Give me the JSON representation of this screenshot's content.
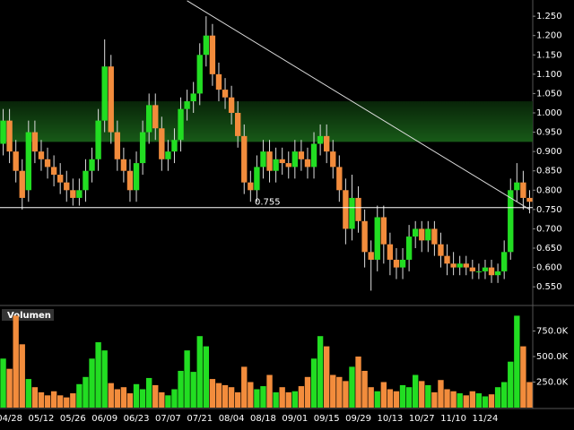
{
  "chart_data": {
    "type": "candlestick",
    "categories": [
      null,
      "04/28",
      null,
      null,
      null,
      null,
      "05/12",
      null,
      null,
      null,
      null,
      "05/26",
      null,
      null,
      null,
      null,
      "06/09",
      null,
      null,
      null,
      null,
      "06/23",
      null,
      null,
      null,
      null,
      "07/07",
      null,
      null,
      null,
      null,
      "07/21",
      null,
      null,
      null,
      null,
      "08/04",
      null,
      null,
      null,
      null,
      "08/18",
      null,
      null,
      null,
      null,
      "09/01",
      null,
      null,
      null,
      null,
      "09/15",
      null,
      null,
      null,
      null,
      "09/29",
      null,
      null,
      null,
      null,
      "10/13",
      null,
      null,
      null,
      null,
      "10/27",
      null,
      null,
      null,
      null,
      "11/10",
      null,
      null,
      null,
      null,
      "11/24",
      null,
      null,
      null,
      null,
      null,
      null,
      null
    ],
    "open": [
      0.92,
      0.98,
      0.9,
      0.85,
      0.8,
      0.95,
      0.9,
      0.88,
      0.86,
      0.84,
      0.82,
      0.8,
      0.78,
      0.8,
      0.85,
      0.88,
      0.98,
      1.12,
      0.95,
      0.88,
      0.85,
      0.8,
      0.87,
      0.95,
      1.02,
      0.96,
      0.88,
      0.9,
      0.93,
      1.01,
      1.03,
      1.05,
      1.15,
      1.2,
      1.1,
      1.06,
      1.04,
      1.0,
      0.94,
      0.82,
      0.8,
      0.86,
      0.9,
      0.85,
      0.88,
      0.87,
      0.86,
      0.9,
      0.88,
      0.86,
      0.92,
      0.94,
      0.9,
      0.86,
      0.8,
      0.7,
      0.78,
      0.72,
      0.64,
      0.62,
      0.73,
      0.66,
      0.62,
      0.6,
      0.62,
      0.68,
      0.7,
      0.67,
      0.7,
      0.66,
      0.63,
      0.61,
      0.6,
      0.61,
      0.6,
      0.59,
      0.59,
      0.6,
      0.58,
      0.59,
      0.64,
      0.8,
      0.82,
      0.78
    ],
    "high": [
      1.01,
      1.01,
      0.93,
      0.88,
      0.98,
      0.98,
      0.93,
      0.91,
      0.89,
      0.87,
      0.85,
      0.83,
      0.83,
      0.88,
      0.91,
      1.01,
      1.19,
      1.15,
      0.98,
      0.91,
      0.88,
      0.9,
      0.98,
      1.05,
      1.05,
      0.99,
      0.93,
      0.96,
      1.04,
      1.06,
      1.08,
      1.18,
      1.25,
      1.23,
      1.13,
      1.09,
      1.07,
      1.03,
      0.97,
      0.85,
      0.89,
      0.93,
      0.93,
      0.91,
      0.91,
      0.9,
      0.93,
      0.93,
      0.91,
      0.95,
      0.97,
      0.97,
      0.93,
      0.89,
      0.83,
      0.84,
      0.81,
      0.75,
      0.67,
      0.76,
      0.76,
      0.69,
      0.65,
      0.65,
      0.71,
      0.72,
      0.72,
      0.72,
      0.72,
      0.69,
      0.66,
      0.64,
      0.63,
      0.63,
      0.62,
      0.61,
      0.62,
      0.62,
      0.61,
      0.67,
      0.83,
      0.87,
      0.85,
      0.8
    ],
    "low": [
      0.89,
      0.87,
      0.82,
      0.75,
      0.77,
      0.87,
      0.85,
      0.83,
      0.81,
      0.79,
      0.77,
      0.76,
      0.76,
      0.77,
      0.82,
      0.85,
      0.95,
      0.92,
      0.85,
      0.82,
      0.77,
      0.77,
      0.84,
      0.92,
      0.93,
      0.85,
      0.85,
      0.87,
      0.9,
      0.98,
      1.0,
      1.02,
      1.12,
      1.07,
      1.03,
      1.01,
      0.97,
      0.91,
      0.79,
      0.77,
      0.77,
      0.83,
      0.82,
      0.82,
      0.84,
      0.83,
      0.83,
      0.85,
      0.83,
      0.83,
      0.89,
      0.87,
      0.83,
      0.77,
      0.66,
      0.67,
      0.69,
      0.6,
      0.54,
      0.59,
      0.61,
      0.58,
      0.57,
      0.57,
      0.59,
      0.65,
      0.64,
      0.64,
      0.63,
      0.6,
      0.58,
      0.58,
      0.58,
      0.58,
      0.57,
      0.57,
      0.57,
      0.56,
      0.56,
      0.57,
      0.62,
      0.77,
      0.75,
      0.74
    ],
    "close": [
      0.98,
      0.9,
      0.85,
      0.78,
      0.95,
      0.9,
      0.88,
      0.86,
      0.84,
      0.82,
      0.8,
      0.78,
      0.8,
      0.85,
      0.88,
      0.98,
      1.12,
      0.95,
      0.88,
      0.85,
      0.8,
      0.87,
      0.95,
      1.02,
      0.96,
      0.88,
      0.9,
      0.93,
      1.01,
      1.03,
      1.05,
      1.15,
      1.2,
      1.1,
      1.06,
      1.04,
      1.0,
      0.94,
      0.82,
      0.8,
      0.86,
      0.9,
      0.85,
      0.88,
      0.87,
      0.86,
      0.9,
      0.88,
      0.86,
      0.92,
      0.94,
      0.9,
      0.86,
      0.8,
      0.7,
      0.78,
      0.72,
      0.64,
      0.62,
      0.73,
      0.66,
      0.62,
      0.6,
      0.62,
      0.68,
      0.7,
      0.67,
      0.7,
      0.66,
      0.63,
      0.61,
      0.6,
      0.61,
      0.6,
      0.59,
      0.59,
      0.6,
      0.58,
      0.59,
      0.64,
      0.8,
      0.82,
      0.78,
      0.77
    ],
    "volume": [
      480000,
      380000,
      900000,
      620000,
      280000,
      200000,
      150000,
      120000,
      160000,
      120000,
      100000,
      140000,
      230000,
      300000,
      480000,
      640000,
      560000,
      240000,
      180000,
      200000,
      140000,
      230000,
      180000,
      290000,
      220000,
      150000,
      120000,
      180000,
      360000,
      560000,
      350000,
      700000,
      600000,
      280000,
      240000,
      220000,
      200000,
      150000,
      400000,
      250000,
      180000,
      210000,
      320000,
      150000,
      200000,
      150000,
      160000,
      210000,
      300000,
      480000,
      700000,
      600000,
      320000,
      300000,
      260000,
      400000,
      500000,
      360000,
      200000,
      160000,
      250000,
      180000,
      160000,
      220000,
      200000,
      320000,
      260000,
      220000,
      150000,
      270000,
      180000,
      160000,
      140000,
      120000,
      160000,
      140000,
      110000,
      130000,
      200000,
      250000,
      450000,
      900000,
      600000,
      250000
    ],
    "up_color": "#22dd22",
    "down_color": "#f28c3c",
    "ylim": [
      0.504,
      1.292
    ],
    "yticks": [
      {
        "value": 1.25,
        "label": "1.250"
      },
      {
        "value": 1.2,
        "label": "1.200"
      },
      {
        "value": 1.15,
        "label": "1.150"
      },
      {
        "value": 1.1,
        "label": "1.100"
      },
      {
        "value": 1.05,
        "label": "1.050"
      },
      {
        "value": 1.0,
        "label": "1.000"
      },
      {
        "value": 0.95,
        "label": "0.950"
      },
      {
        "value": 0.9,
        "label": "0.900"
      },
      {
        "value": 0.85,
        "label": "0.850"
      },
      {
        "value": 0.8,
        "label": "0.800"
      },
      {
        "value": 0.75,
        "label": "0.750"
      },
      {
        "value": 0.7,
        "label": "0.700"
      },
      {
        "value": 0.65,
        "label": "0.650"
      },
      {
        "value": 0.6,
        "label": "0.600"
      },
      {
        "value": 0.55,
        "label": "0.550"
      }
    ],
    "support_level": 0.755,
    "zone": [
      0.925,
      1.03
    ],
    "trendline": {
      "x": [
        29,
        83
      ],
      "y": [
        1.29,
        0.75
      ]
    },
    "volume_title": "Volumen",
    "volume_ylim": [
      0,
      965000
    ],
    "volume_yticks": [
      {
        "value": 750000,
        "label": "750.0K"
      },
      {
        "value": 500000,
        "label": "500.0K"
      },
      {
        "value": 250000,
        "label": "250.0K"
      }
    ]
  }
}
